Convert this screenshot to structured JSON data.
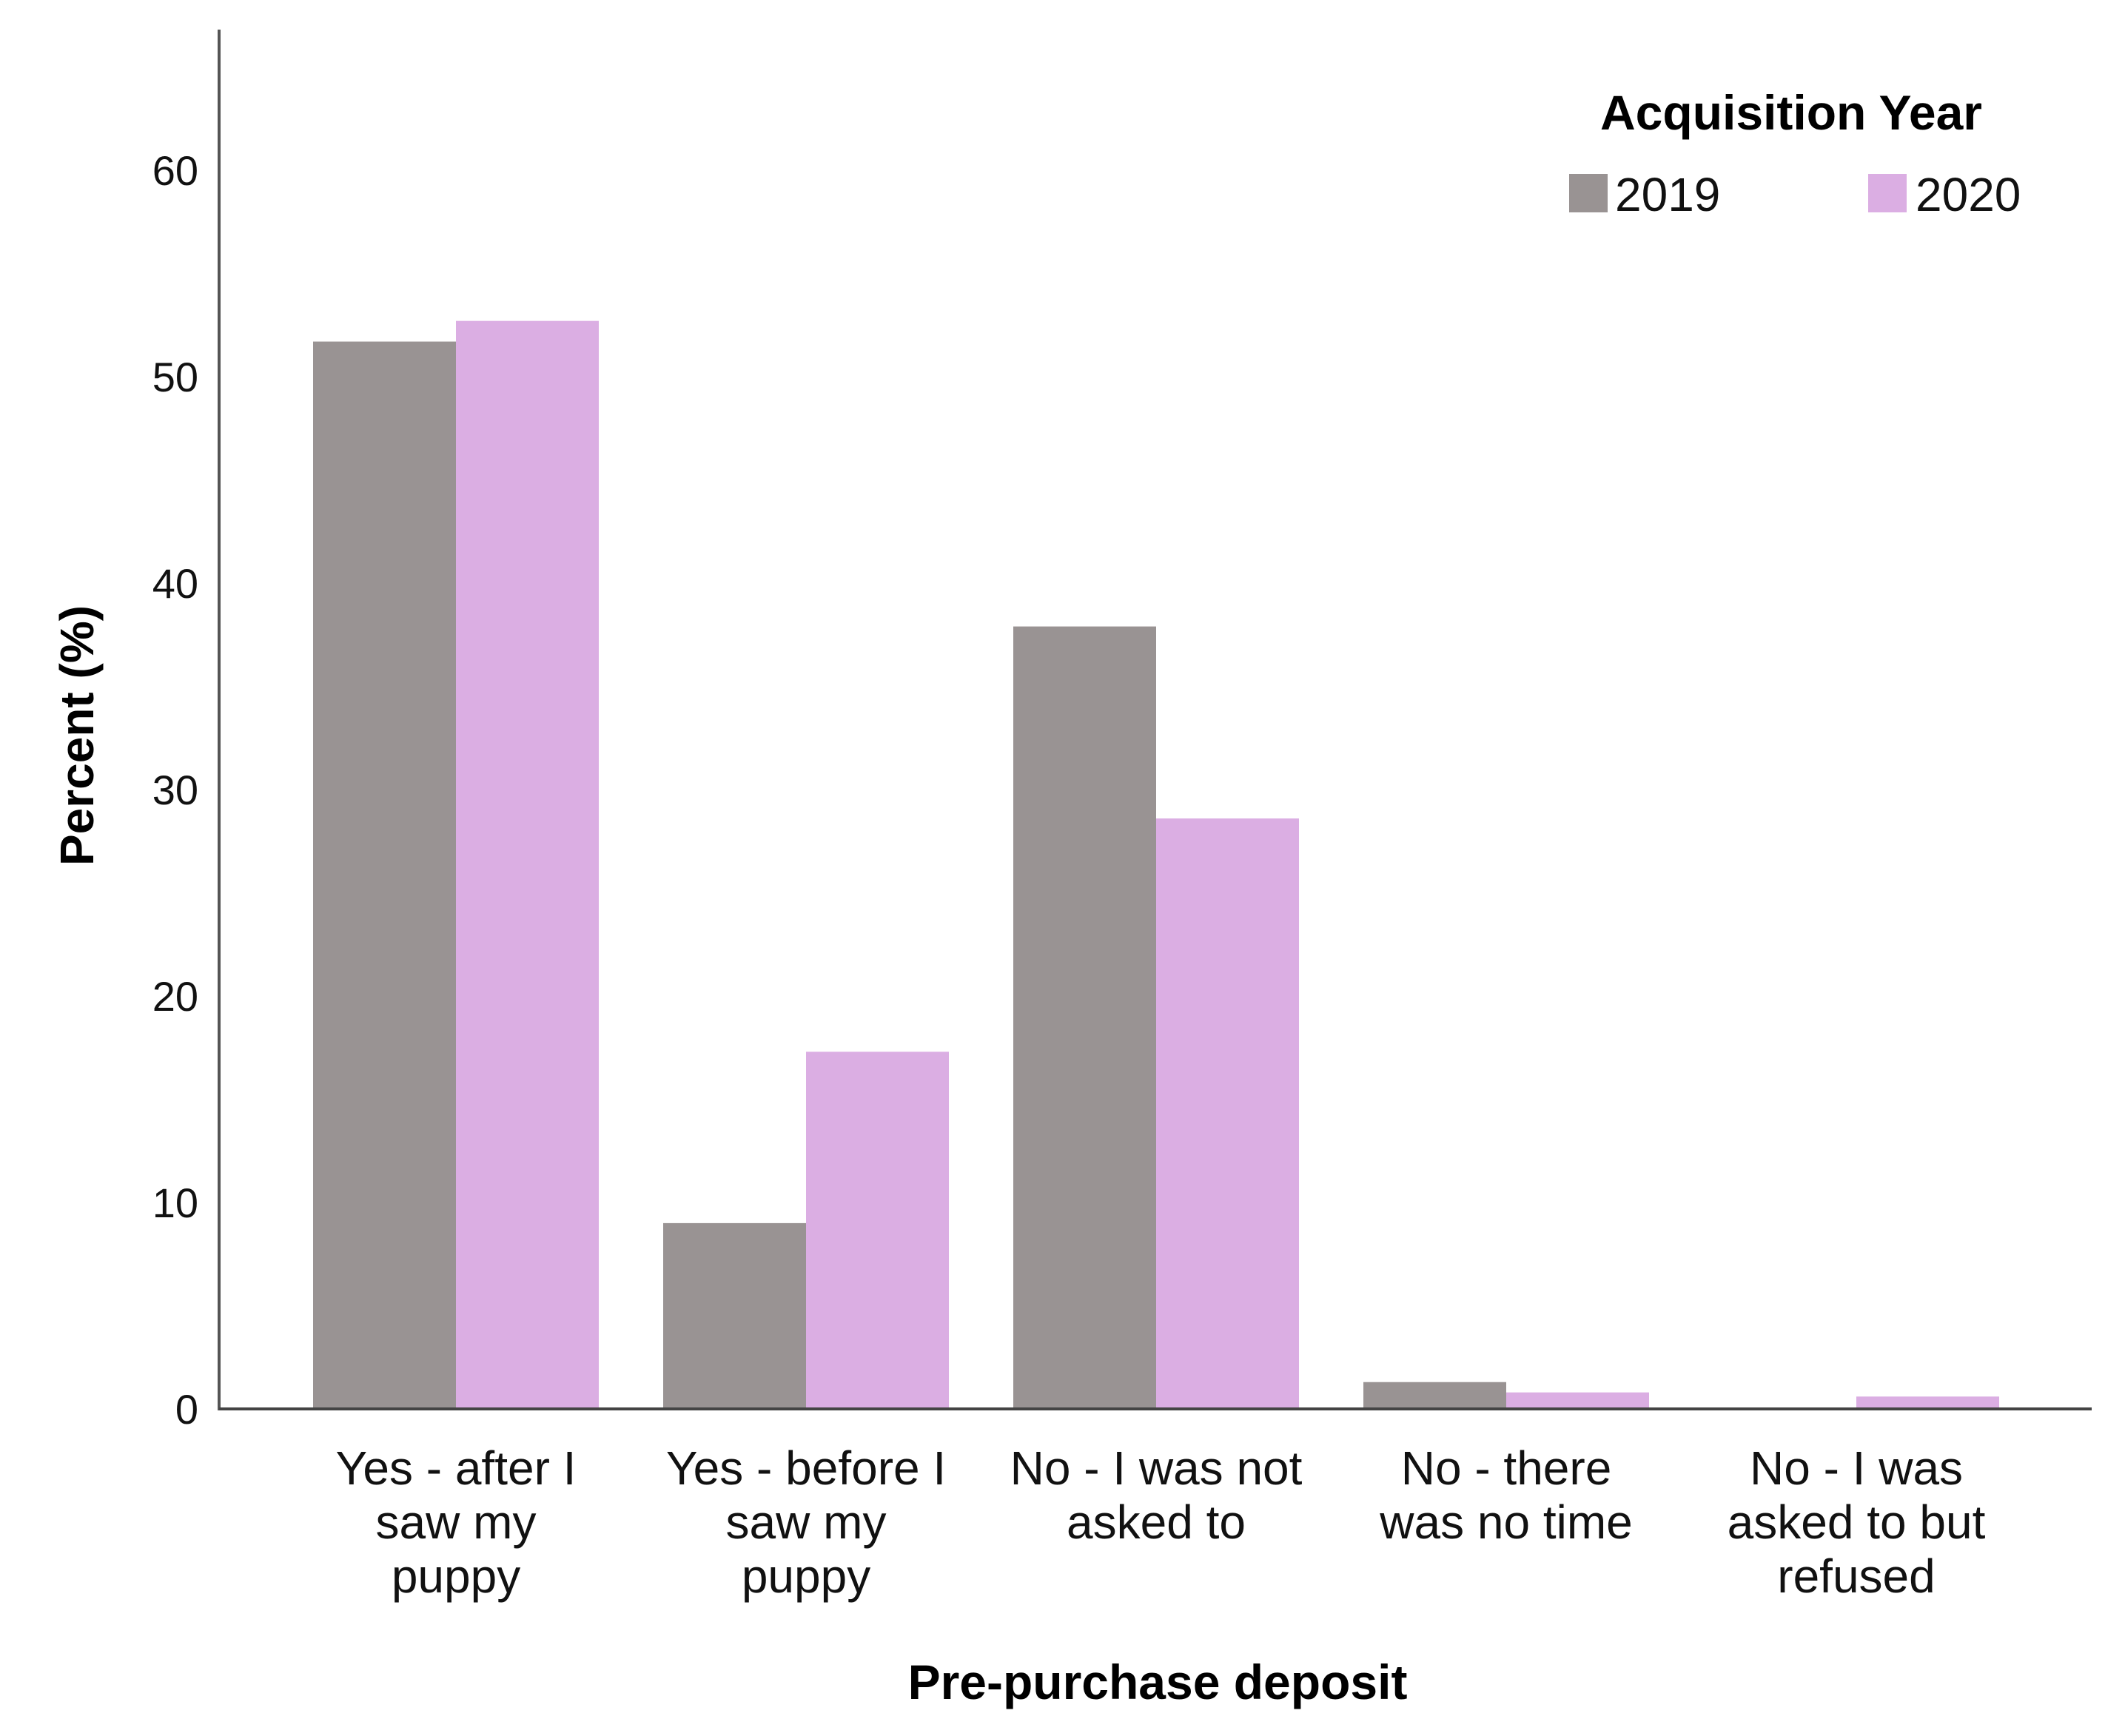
{
  "chart_data": {
    "type": "bar",
    "title": "",
    "xlabel": "Pre-purchase deposit",
    "ylabel": "Percent (%)",
    "ylim": [
      0,
      66
    ],
    "yticks": [
      0,
      10,
      20,
      30,
      40,
      50,
      60
    ],
    "grid": false,
    "categories": [
      [
        "Yes - after I",
        "saw my",
        "puppy"
      ],
      [
        "Yes - before I",
        "saw my",
        "puppy"
      ],
      [
        "No - I was not",
        "asked to"
      ],
      [
        "No - there",
        "was no time"
      ],
      [
        "No - I was",
        "asked to but",
        "refused"
      ]
    ],
    "legend": {
      "title": "Acquisition Year",
      "placement": "top-right"
    },
    "series": [
      {
        "name": "2019",
        "color": "#999393",
        "values": [
          51.7,
          9.0,
          37.9,
          1.3,
          0.0
        ]
      },
      {
        "name": "2020",
        "color": "#dbaee3",
        "values": [
          52.7,
          17.3,
          28.6,
          0.8,
          0.6
        ]
      }
    ]
  }
}
